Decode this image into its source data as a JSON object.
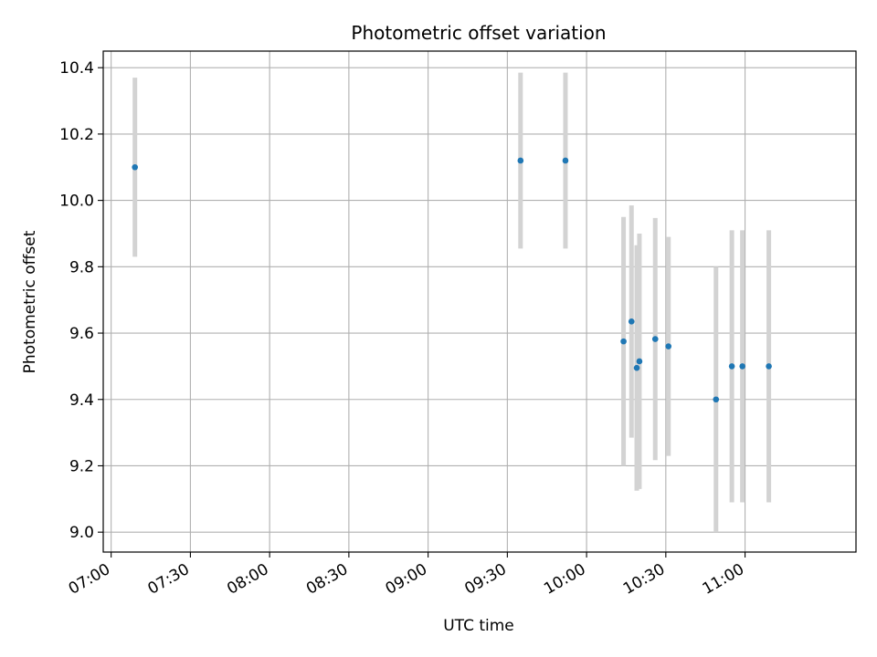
{
  "chart_data": {
    "type": "scatter",
    "title": "Photometric offset variation",
    "xlabel": "UTC time",
    "ylabel": "Photometric offset",
    "xlim": [
      "06:57",
      "11:42"
    ],
    "ylim": [
      8.94,
      10.45
    ],
    "x_ticks": [
      "07:00",
      "07:30",
      "08:00",
      "08:30",
      "09:00",
      "09:30",
      "10:00",
      "10:30",
      "11:00"
    ],
    "y_ticks": [
      9.0,
      9.2,
      9.4,
      9.6,
      9.8,
      10.0,
      10.2,
      10.4
    ],
    "grid": true,
    "marker_color": "#1f77b4",
    "errorbar_color": "#d3d3d3",
    "points": [
      {
        "x": "07:09",
        "y": 10.1,
        "err": 0.27
      },
      {
        "x": "09:35",
        "y": 10.12,
        "err": 0.265
      },
      {
        "x": "09:52",
        "y": 10.12,
        "err": 0.265
      },
      {
        "x": "10:14",
        "y": 9.575,
        "err": 0.375
      },
      {
        "x": "10:17",
        "y": 9.635,
        "err": 0.35
      },
      {
        "x": "10:19",
        "y": 9.495,
        "err": 0.37
      },
      {
        "x": "10:20",
        "y": 9.515,
        "err": 0.385
      },
      {
        "x": "10:26",
        "y": 9.582,
        "err": 0.365
      },
      {
        "x": "10:31",
        "y": 9.56,
        "err": 0.33
      },
      {
        "x": "10:49",
        "y": 9.4,
        "err": 0.4
      },
      {
        "x": "10:55",
        "y": 9.5,
        "err": 0.41
      },
      {
        "x": "10:59",
        "y": 9.5,
        "err": 0.41
      },
      {
        "x": "11:09",
        "y": 9.5,
        "err": 0.41
      }
    ]
  }
}
